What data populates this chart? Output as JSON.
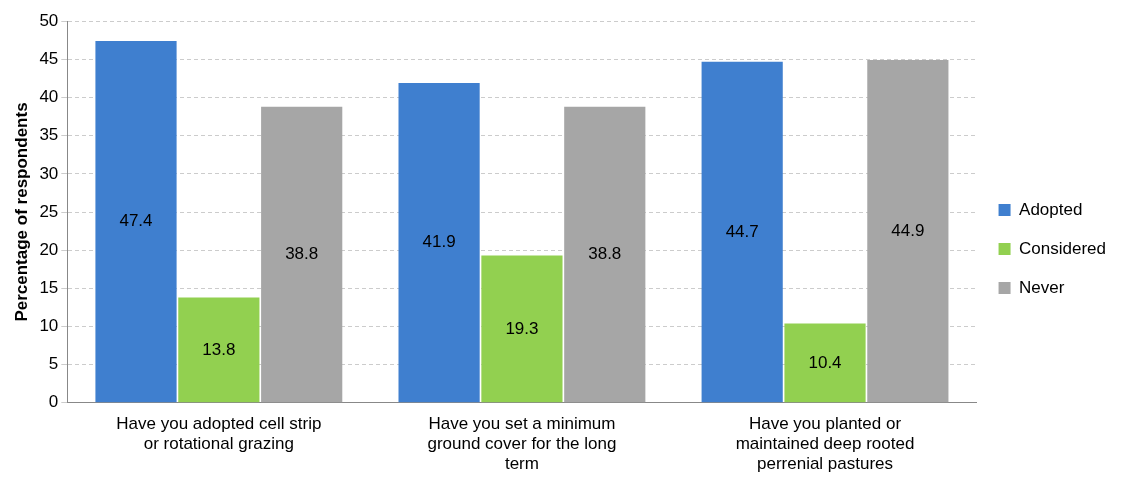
{
  "chart_data": {
    "type": "bar",
    "ylabel": "Percentage of respondents",
    "categories": [
      "Have you adopted cell strip or rotational grazing",
      "Have you set a minimum ground cover for the long term",
      "Have you planted or maintained deep rooted perrenial pastures"
    ],
    "series": [
      {
        "name": "Adopted",
        "color": "#3f7fcf",
        "values": [
          47.4,
          41.9,
          44.7
        ]
      },
      {
        "name": "Considered",
        "color": "#92d050",
        "values": [
          13.8,
          19.3,
          10.4
        ]
      },
      {
        "name": "Never",
        "color": "#a6a6a6",
        "values": [
          38.8,
          38.8,
          44.9
        ]
      }
    ],
    "ylim": [
      0,
      50
    ],
    "yticks": [
      0,
      5,
      10,
      15,
      20,
      25,
      30,
      35,
      40,
      45,
      50
    ],
    "grid": "y",
    "legend": "right",
    "data_labels": true
  }
}
